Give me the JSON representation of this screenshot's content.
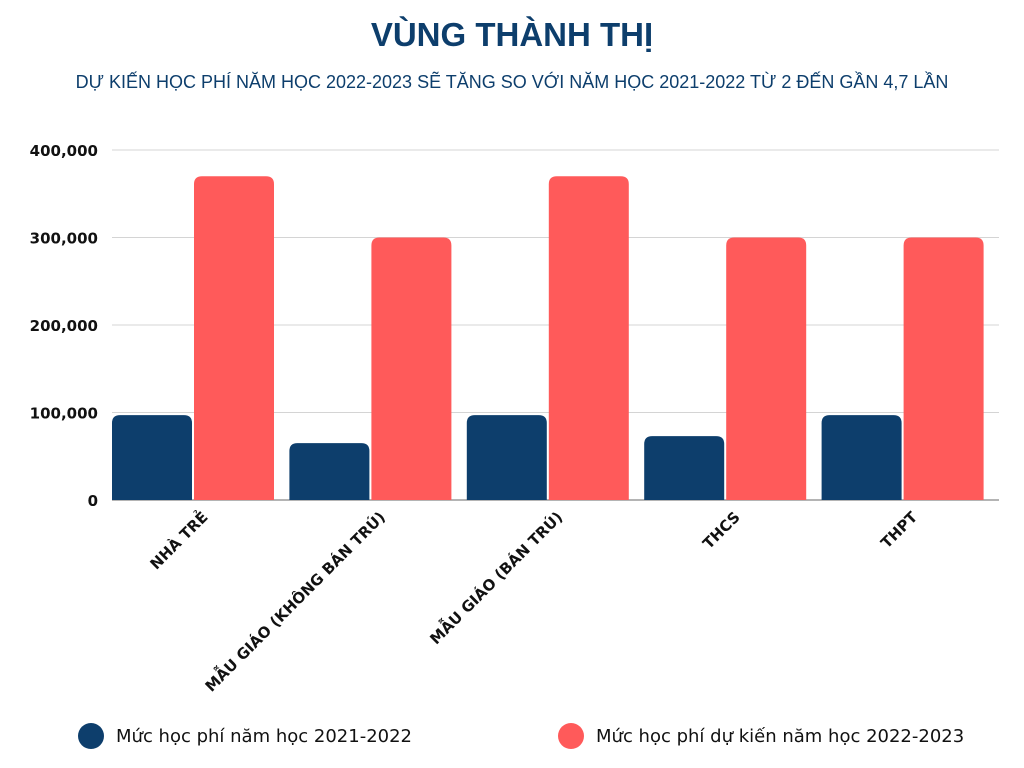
{
  "header": {
    "title": "VÙNG THÀNH THỊ",
    "subtitle": "DỰ KIẾN HỌC PHÍ NĂM HỌC 2022-2023 SẼ TĂNG SO VỚI NĂM HỌC 2021-2022 TỪ 2 ĐẾN GẦN 4,7 LẦN"
  },
  "colors": {
    "series1": "#0d3e6c",
    "series2": "#ff5a5a",
    "grid": "#d4d4d4",
    "axis": "#888888"
  },
  "chart_data": {
    "type": "bar",
    "title": "VÙNG THÀNH THỊ",
    "subtitle": "DỰ KIẾN HỌC PHÍ NĂM HỌC 2022-2023 SẼ TĂNG SO VỚI NĂM HỌC 2021-2022 TỪ 2 ĐẾN GẦN 4,7 LẦN",
    "xlabel": "",
    "ylabel": "",
    "ylim": [
      0,
      400000
    ],
    "yticks": [
      0,
      100000,
      200000,
      300000,
      400000
    ],
    "ytick_labels": [
      "0",
      "100,000",
      "200,000",
      "300,000",
      "400,000"
    ],
    "grid": true,
    "legend_position": "bottom",
    "categories": [
      "NHÀ TRẺ",
      "MẪU GIÁO (KHÔNG BÁN TRÚ)",
      "MẪU GIÁO (BÁN TRÚ)",
      "THCS",
      "THPT"
    ],
    "series": [
      {
        "name": "Mức học phí năm học 2021-2022",
        "values": [
          97000,
          65000,
          97000,
          73000,
          97000
        ]
      },
      {
        "name": "Mức học phí dự kiến năm học 2022-2023",
        "values": [
          370000,
          300000,
          370000,
          300000,
          300000
        ]
      }
    ]
  }
}
